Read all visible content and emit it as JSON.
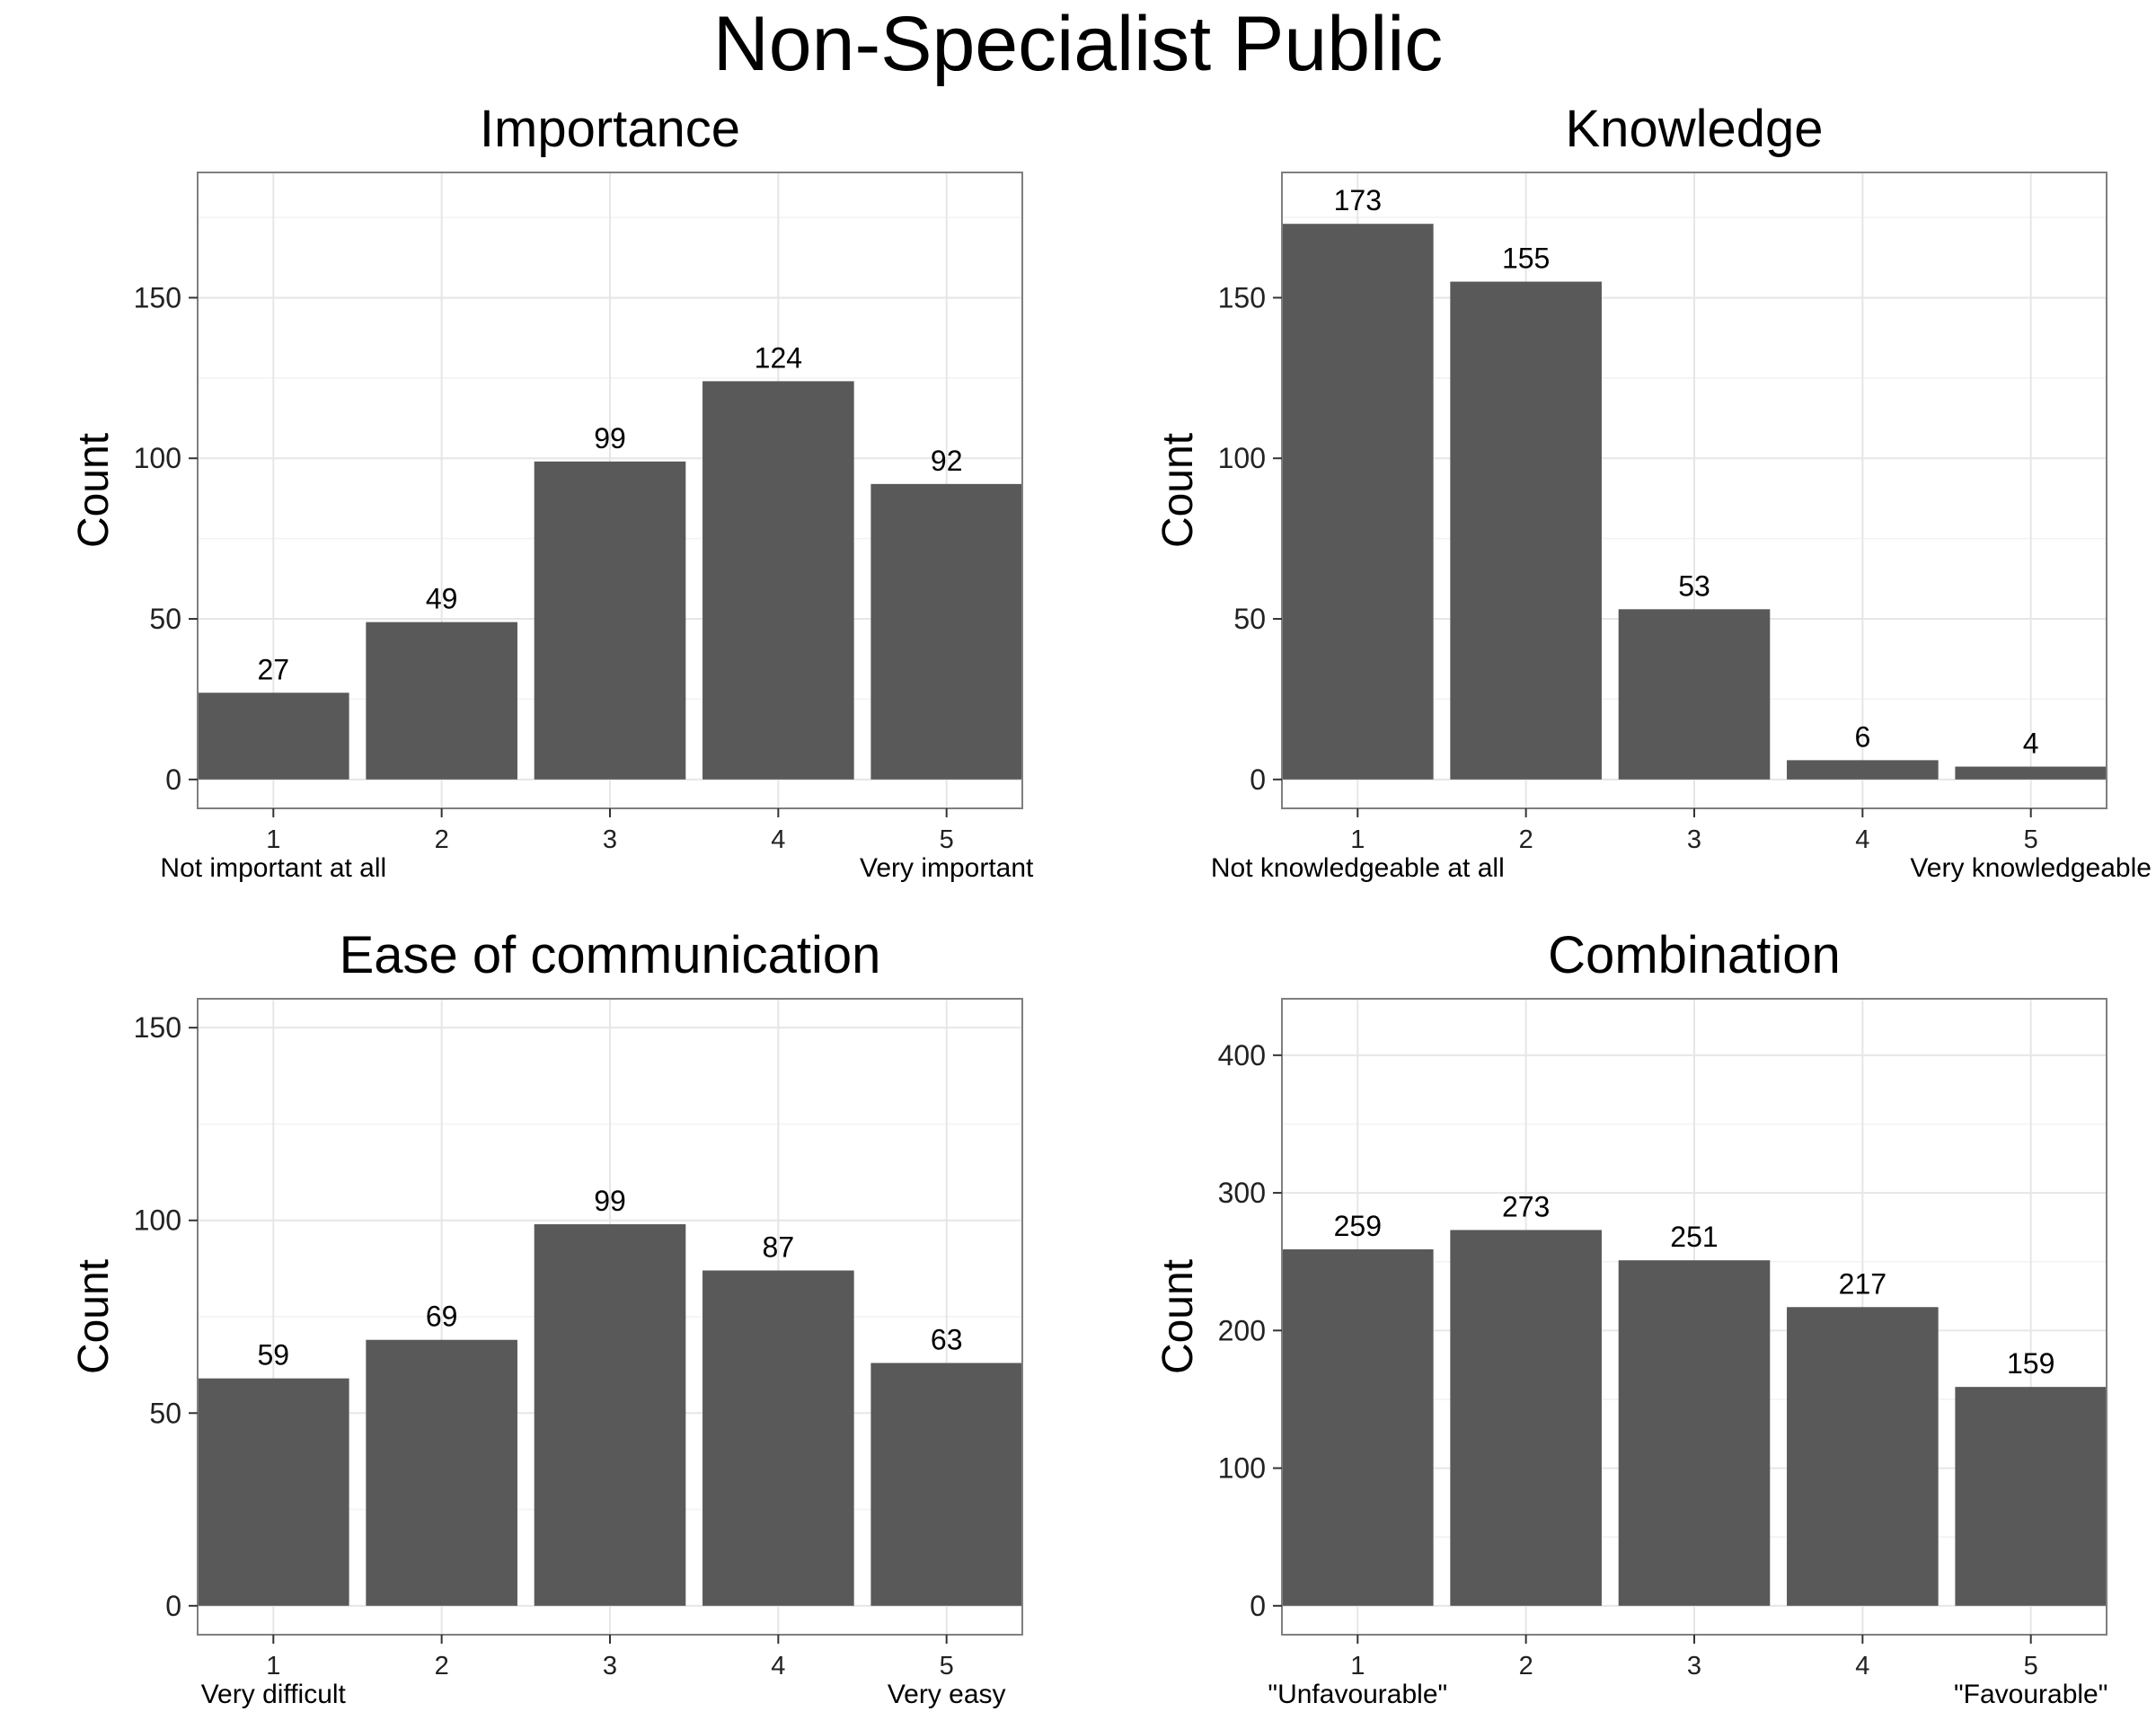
{
  "title": "Non-Specialist Public",
  "chart_data": [
    {
      "type": "bar",
      "title": "Importance",
      "ylabel": "Count",
      "xlabel": "",
      "categories": [
        "1",
        "2",
        "3",
        "4",
        "5"
      ],
      "values": [
        27,
        49,
        99,
        124,
        92
      ],
      "ylim": [
        -9,
        189
      ],
      "yticks": [
        0,
        50,
        100,
        150
      ],
      "low_label": "Not important at all",
      "high_label": "Very important",
      "grid": true,
      "bar_color": "#595959"
    },
    {
      "type": "bar",
      "title": "Knowledge",
      "ylabel": "Count",
      "xlabel": "",
      "categories": [
        "1",
        "2",
        "3",
        "4",
        "5"
      ],
      "values": [
        173,
        155,
        53,
        6,
        4
      ],
      "ylim": [
        -9,
        189
      ],
      "yticks": [
        0,
        50,
        100,
        150
      ],
      "low_label": "Not knowledgeable at all",
      "high_label": "Very knowledgeable",
      "grid": true,
      "bar_color": "#595959"
    },
    {
      "type": "bar",
      "title": "Ease of communication",
      "ylabel": "Count",
      "xlabel": "",
      "categories": [
        "1",
        "2",
        "3",
        "4",
        "5"
      ],
      "values": [
        59,
        69,
        99,
        87,
        63
      ],
      "ylim": [
        -7.5,
        157.5
      ],
      "yticks": [
        0,
        50,
        100,
        150
      ],
      "low_label": "Very difficult",
      "high_label": "Very easy",
      "grid": true,
      "bar_color": "#595959"
    },
    {
      "type": "bar",
      "title": "Combination",
      "ylabel": "Count",
      "xlabel": "",
      "categories": [
        "1",
        "2",
        "3",
        "4",
        "5"
      ],
      "values": [
        259,
        273,
        251,
        217,
        159
      ],
      "ylim": [
        -21,
        441
      ],
      "yticks": [
        0,
        100,
        200,
        300,
        400
      ],
      "low_label": "\"Unfavourable\"",
      "high_label": "\"Favourable\"",
      "grid": true,
      "bar_color": "#595959"
    }
  ]
}
